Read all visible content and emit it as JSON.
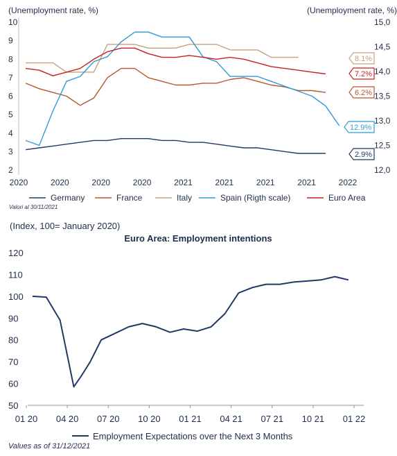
{
  "top_chart": {
    "left_axis_label": "(Unemployment rate, %)",
    "right_axis_label": "(Unemployment rate, %)",
    "source_note": "Valori al 30/11/2021",
    "chart_data": {
      "type": "line",
      "x_tick_labels": [
        "2020",
        "2020",
        "2020",
        "2020",
        "2021",
        "2021",
        "2021",
        "2021",
        "2022"
      ],
      "ylim_left": [
        2,
        10
      ],
      "yticks_left": [
        "2",
        "3",
        "4",
        "5",
        "6",
        "7",
        "8",
        "9",
        "10"
      ],
      "ylim_right": [
        12.0,
        15.0
      ],
      "yticks_right": [
        "12,0",
        "12,5",
        "13,0",
        "13,5",
        "14,0",
        "14,5",
        "15,0"
      ],
      "series": [
        {
          "name": "Germany",
          "color": "#1f3864",
          "axis": "left",
          "values": [
            3.1,
            3.2,
            3.3,
            3.4,
            3.5,
            3.6,
            3.6,
            3.7,
            3.7,
            3.7,
            3.6,
            3.6,
            3.5,
            3.5,
            3.4,
            3.3,
            3.2,
            3.2,
            3.1,
            3.0,
            2.9,
            2.9,
            2.9
          ]
        },
        {
          "name": "France",
          "color": "#b5572f",
          "axis": "left",
          "values": [
            6.7,
            6.4,
            6.2,
            6.0,
            5.5,
            5.9,
            7.0,
            7.5,
            7.5,
            7.0,
            6.8,
            6.6,
            6.6,
            6.7,
            6.7,
            6.9,
            7.0,
            6.8,
            6.6,
            6.5,
            6.3,
            6.3,
            6.2
          ]
        },
        {
          "name": "Italy",
          "color": "#c8a07a",
          "axis": "left",
          "values": [
            7.8,
            7.8,
            7.8,
            7.3,
            7.3,
            7.3,
            8.8,
            8.8,
            8.8,
            8.6,
            8.6,
            8.6,
            8.8,
            8.8,
            8.8,
            8.5,
            8.5,
            8.5,
            8.1,
            8.1,
            8.1
          ]
        },
        {
          "name": "Spain (Rigth scale)",
          "color": "#2f9bd6",
          "axis": "right",
          "values": [
            12.6,
            12.5,
            13.2,
            13.8,
            13.9,
            14.2,
            14.3,
            14.6,
            14.8,
            14.8,
            14.7,
            14.7,
            14.7,
            14.3,
            14.2,
            13.9,
            13.9,
            13.9,
            13.8,
            13.7,
            13.6,
            13.5,
            13.3,
            12.9
          ]
        },
        {
          "name": "Euro Area",
          "color": "#c81e1e",
          "axis": "left",
          "values": [
            7.5,
            7.4,
            7.1,
            7.3,
            7.5,
            8.0,
            8.4,
            8.6,
            8.6,
            8.3,
            8.1,
            8.1,
            8.2,
            8.1,
            8.0,
            8.1,
            8.0,
            7.8,
            7.6,
            7.5,
            7.4,
            7.3,
            7.2
          ]
        }
      ],
      "end_labels": [
        {
          "text": "8.1%",
          "color": "#c8a07a"
        },
        {
          "text": "7.2%",
          "color": "#c81e1e"
        },
        {
          "text": "6.2%",
          "color": "#b5572f"
        },
        {
          "text": "12.9%",
          "color": "#2f9bd6"
        },
        {
          "text": "2.9%",
          "color": "#1f3864"
        }
      ]
    }
  },
  "bottom_chart": {
    "index_label": "(Index, 100= January 2020)",
    "title": "Euro Area: Employment intentions",
    "source_note": "Values as of 31/12/2021",
    "chart_data": {
      "type": "line",
      "title": "Euro Area: Employment intentions",
      "ylim": [
        50,
        120
      ],
      "yticks": [
        "120",
        "110",
        "100",
        "90",
        "80",
        "70",
        "60",
        "50"
      ],
      "x_tick_labels": [
        "01 20",
        "04 20",
        "07 20",
        "10 20",
        "01 21",
        "04 21",
        "07 21",
        "10 21",
        "01 22"
      ],
      "x_months": [
        0,
        1,
        2,
        3,
        3.5,
        4.2,
        5,
        6,
        7,
        8,
        9,
        10,
        11,
        12,
        13,
        14,
        15,
        16,
        17,
        18,
        19,
        20,
        21,
        22,
        23
      ],
      "series": [
        {
          "name": "Employment Expectations over the Next 3 Months",
          "color": "#1f3864",
          "values": [
            100,
            99.6,
            89,
            58.5,
            63,
            70,
            80,
            83,
            86,
            87.5,
            86,
            83.5,
            85,
            84,
            86,
            92,
            101.5,
            104,
            105.5,
            105.5,
            106.5,
            107,
            107.5,
            109,
            107.5
          ]
        }
      ]
    }
  }
}
